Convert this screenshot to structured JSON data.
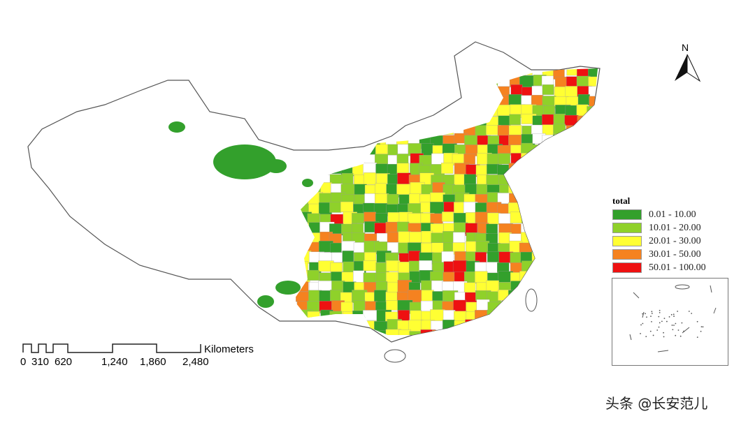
{
  "legend": {
    "title": "total",
    "classes": [
      {
        "label": "0.01 - 10.00",
        "color": "#33a02c"
      },
      {
        "label": "10.01 - 20.00",
        "color": "#8fd12a"
      },
      {
        "label": "20.01 - 30.00",
        "color": "#ffff33"
      },
      {
        "label": "30.01 - 50.00",
        "color": "#f58220"
      },
      {
        "label": "50.01 - 100.00",
        "color": "#ee1111"
      }
    ]
  },
  "scale_bar": {
    "unit": "Kilometers",
    "ticks": [
      "0",
      "310",
      "620",
      "1,240",
      "1,860",
      "2,480"
    ]
  },
  "north_arrow": {
    "label": "N",
    "icon": "north-arrow-icon"
  },
  "watermark": "头条 @长安范儿"
}
